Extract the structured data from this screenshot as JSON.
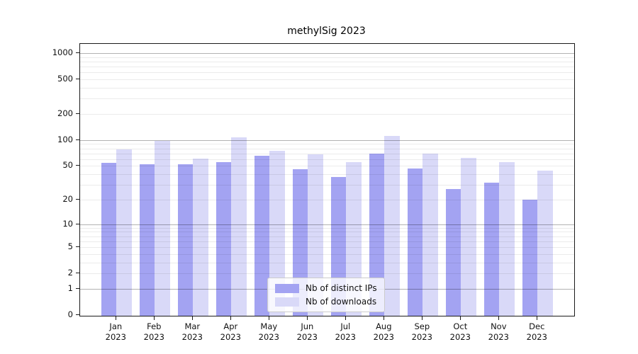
{
  "title": "methylSig 2023",
  "chart_data": {
    "type": "bar",
    "title": "methylSig 2023",
    "year": "2023",
    "months": [
      "Jan",
      "Feb",
      "Mar",
      "Apr",
      "May",
      "Jun",
      "Jul",
      "Aug",
      "Sep",
      "Oct",
      "Nov",
      "Dec"
    ],
    "series": [
      {
        "name": "Nb of distinct IPs",
        "color": "#a3a3f2",
        "values": [
          54,
          52,
          52,
          55,
          66,
          46,
          37,
          70,
          47,
          27,
          32,
          20
        ]
      },
      {
        "name": "Nb of downloads",
        "color": "#d9d9f8",
        "values": [
          78,
          98,
          61,
          107,
          75,
          69,
          56,
          111,
          70,
          62,
          56,
          44
        ]
      }
    ],
    "y_scale": "log10(1+y)",
    "ylim": [
      0,
      1090
    ],
    "y_ticks": [
      1000,
      500,
      200,
      100,
      50,
      20,
      10,
      5,
      2,
      1,
      0
    ],
    "y_major_gridlines": [
      1,
      10,
      100,
      1000
    ],
    "y_minor_gridlines": [
      2,
      3,
      4,
      5,
      6,
      7,
      8,
      9,
      20,
      30,
      40,
      50,
      60,
      70,
      80,
      90,
      200,
      300,
      400,
      500,
      600,
      700,
      800,
      900
    ],
    "grid": true,
    "legend_position": "lower center"
  },
  "colors": {
    "bar_ips": "#a3a3f2",
    "bar_downloads": "#d9d9f8",
    "spine": "#1a1a1a",
    "major_grid": "rgba(0,0,0,0.30)",
    "minor_grid": "rgba(0,0,0,0.08)",
    "background": "#ffffff"
  }
}
